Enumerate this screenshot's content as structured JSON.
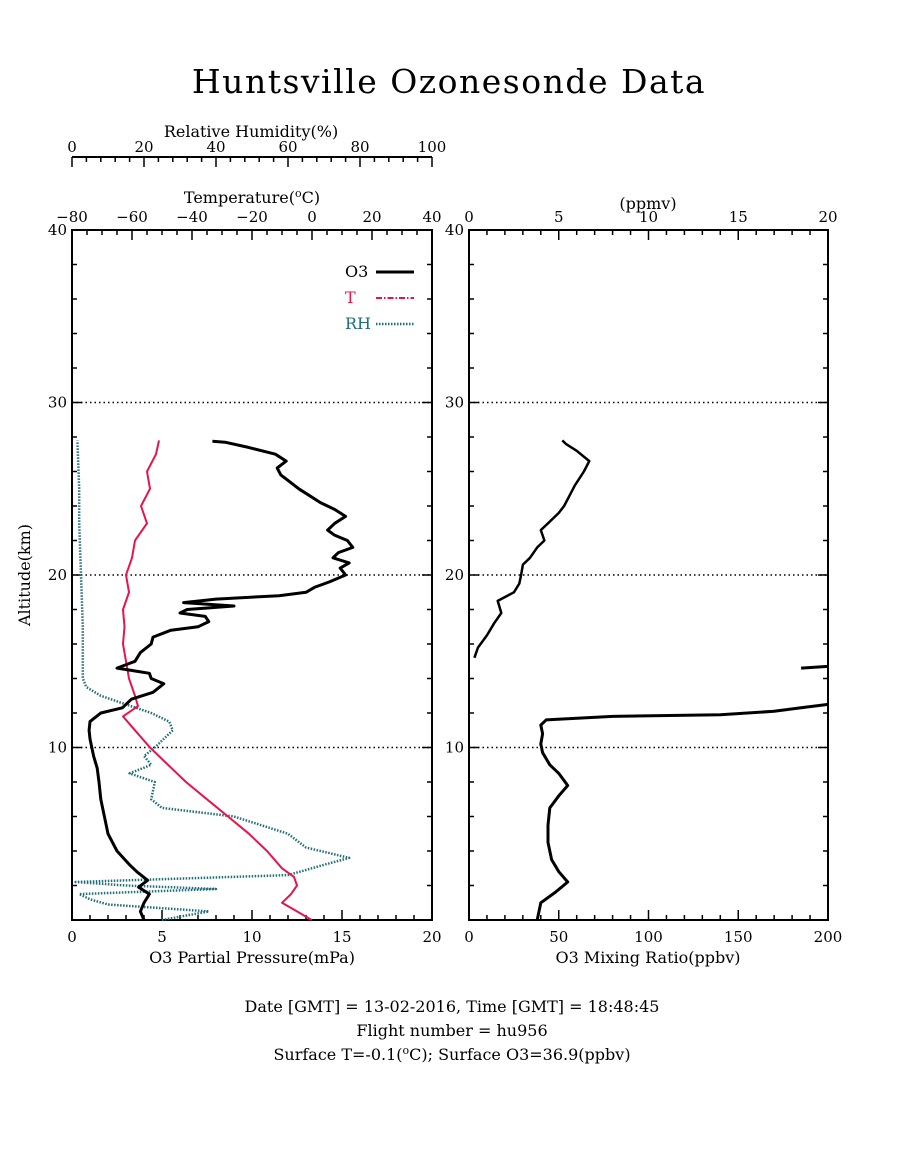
{
  "title": "Huntsville Ozonesonde Data",
  "footer": {
    "line1": "Date [GMT] = 13-02-2016,  Time [GMT] = 18:48:45",
    "line2": "Flight number = hu956",
    "line3": "Surface T=-0.1(°C); Surface O3=36.9(ppbv)"
  },
  "colors": {
    "o3": "#000000",
    "t": "#e8134b",
    "rh": "#1f6e78"
  },
  "chart_data": [
    {
      "type": "line",
      "ylabel": "Altitude(km)",
      "ylim": [
        0,
        40
      ],
      "yticks": [
        "10",
        "20",
        "30",
        "40"
      ],
      "grid_y": [
        10,
        20,
        30
      ],
      "legend": [
        "O3",
        "T",
        "RH"
      ],
      "legend_position": "top-right",
      "axes": {
        "o3": {
          "label": "O3 Partial Pressure(mPa)",
          "range": [
            0,
            20
          ],
          "ticks": [
            "0",
            "5",
            "10",
            "15",
            "20"
          ]
        },
        "temperature": {
          "label": "Temperature(°C)",
          "range": [
            -80,
            40
          ],
          "ticks": [
            "-80",
            "-60",
            "-40",
            "-20",
            "0",
            "20",
            "40"
          ]
        },
        "rh": {
          "label": "Relative Humidity(%)",
          "range": [
            0,
            100
          ],
          "ticks": [
            "0",
            "20",
            "40",
            "60",
            "80",
            "100"
          ]
        }
      },
      "series": [
        {
          "name": "O3",
          "x_units": "mPa",
          "points": [
            [
              4.0,
              0.0
            ],
            [
              3.8,
              0.5
            ],
            [
              4.0,
              1.0
            ],
            [
              4.3,
              1.5
            ],
            [
              3.7,
              1.9
            ],
            [
              4.2,
              2.3
            ],
            [
              3.6,
              2.8
            ],
            [
              3.2,
              3.2
            ],
            [
              2.5,
              4.0
            ],
            [
              2.0,
              5.0
            ],
            [
              1.8,
              6.0
            ],
            [
              1.6,
              7.0
            ],
            [
              1.5,
              8.0
            ],
            [
              1.4,
              8.8
            ],
            [
              1.2,
              9.5
            ],
            [
              1.1,
              10.0
            ],
            [
              1.0,
              10.5
            ],
            [
              0.95,
              11.0
            ],
            [
              1.0,
              11.5
            ],
            [
              1.6,
              12.0
            ],
            [
              2.8,
              12.3
            ],
            [
              3.3,
              12.8
            ],
            [
              4.5,
              13.2
            ],
            [
              5.1,
              13.7
            ],
            [
              4.4,
              14.0
            ],
            [
              4.3,
              14.3
            ],
            [
              2.5,
              14.6
            ],
            [
              3.5,
              15.0
            ],
            [
              3.8,
              15.5
            ],
            [
              4.4,
              16.0
            ],
            [
              4.5,
              16.4
            ],
            [
              5.5,
              16.8
            ],
            [
              7.0,
              17.0
            ],
            [
              7.6,
              17.3
            ],
            [
              7.4,
              17.6
            ],
            [
              6.0,
              17.8
            ],
            [
              6.4,
              18.0
            ],
            [
              9.0,
              18.2
            ],
            [
              6.2,
              18.4
            ],
            [
              8.0,
              18.6
            ],
            [
              11.5,
              18.8
            ],
            [
              13.0,
              19.0
            ],
            [
              13.5,
              19.3
            ],
            [
              14.3,
              19.6
            ],
            [
              15.2,
              20.0
            ],
            [
              14.9,
              20.4
            ],
            [
              15.4,
              20.7
            ],
            [
              14.5,
              21.0
            ],
            [
              14.8,
              21.3
            ],
            [
              15.6,
              21.6
            ],
            [
              15.3,
              22.0
            ],
            [
              14.6,
              22.3
            ],
            [
              14.2,
              22.6
            ],
            [
              14.6,
              23.0
            ],
            [
              15.2,
              23.4
            ],
            [
              14.6,
              23.8
            ],
            [
              13.8,
              24.2
            ],
            [
              13.2,
              24.6
            ],
            [
              12.6,
              25.0
            ],
            [
              12.1,
              25.4
            ],
            [
              11.6,
              25.8
            ],
            [
              11.4,
              26.2
            ],
            [
              11.9,
              26.6
            ],
            [
              11.3,
              27.0
            ],
            [
              9.8,
              27.4
            ],
            [
              8.5,
              27.7
            ],
            [
              7.8,
              27.75
            ]
          ]
        },
        {
          "name": "T",
          "x_units": "°C",
          "points": [
            [
              -0.1,
              0.0
            ],
            [
              -5.0,
              0.5
            ],
            [
              -10.0,
              1.0
            ],
            [
              -7.0,
              1.5
            ],
            [
              -5.0,
              2.0
            ],
            [
              -6.0,
              2.5
            ],
            [
              -10.0,
              3.0
            ],
            [
              -15.0,
              4.0
            ],
            [
              -21.0,
              5.0
            ],
            [
              -28.0,
              6.0
            ],
            [
              -35.0,
              7.0
            ],
            [
              -42.0,
              8.0
            ],
            [
              -48.0,
              9.0
            ],
            [
              -54.0,
              10.0
            ],
            [
              -59.0,
              11.0
            ],
            [
              -63.0,
              11.8
            ],
            [
              -58.0,
              12.4
            ],
            [
              -59.0,
              13.0
            ],
            [
              -61.0,
              14.0
            ],
            [
              -62.0,
              15.0
            ],
            [
              -63.0,
              16.0
            ],
            [
              -62.5,
              17.0
            ],
            [
              -63.0,
              18.0
            ],
            [
              -61.0,
              19.0
            ],
            [
              -62.0,
              20.0
            ],
            [
              -60.0,
              21.0
            ],
            [
              -59.0,
              22.0
            ],
            [
              -55.0,
              23.0
            ],
            [
              -57.0,
              24.0
            ],
            [
              -54.0,
              25.0
            ],
            [
              -55.0,
              26.0
            ],
            [
              -52.0,
              27.0
            ],
            [
              -51.0,
              27.8
            ]
          ]
        },
        {
          "name": "RH",
          "x_units": "%",
          "points": [
            [
              25.0,
              0.0
            ],
            [
              38.0,
              0.5
            ],
            [
              10.0,
              0.9
            ],
            [
              5.0,
              1.2
            ],
            [
              2.0,
              1.5
            ],
            [
              40.0,
              1.8
            ],
            [
              15.0,
              2.0
            ],
            [
              1.0,
              2.2
            ],
            [
              60.0,
              2.6
            ],
            [
              70.0,
              3.2
            ],
            [
              77.0,
              3.6
            ],
            [
              65.0,
              4.2
            ],
            [
              60.0,
              5.0
            ],
            [
              45.0,
              6.0
            ],
            [
              25.0,
              6.5
            ],
            [
              22.0,
              7.0
            ],
            [
              23.0,
              8.0
            ],
            [
              16.0,
              8.5
            ],
            [
              22.0,
              9.0
            ],
            [
              20.0,
              9.5
            ],
            [
              23.0,
              10.0
            ],
            [
              28.0,
              11.0
            ],
            [
              27.0,
              11.5
            ],
            [
              22.0,
              12.0
            ],
            [
              15.0,
              12.5
            ],
            [
              8.0,
              13.0
            ],
            [
              4.0,
              13.5
            ],
            [
              3.0,
              14.0
            ],
            [
              3.0,
              15.0
            ],
            [
              3.0,
              17.0
            ],
            [
              2.5,
              20.0
            ],
            [
              2.0,
              23.0
            ],
            [
              2.0,
              25.0
            ],
            [
              1.5,
              27.8
            ]
          ]
        }
      ]
    },
    {
      "type": "line",
      "ylim": [
        0,
        40
      ],
      "yticks": [
        "10",
        "20",
        "30",
        "40"
      ],
      "grid_y": [
        10,
        20,
        30
      ],
      "axes": {
        "bottom": {
          "label": "O3 Mixing Ratio(ppbv)",
          "range": [
            0,
            200
          ],
          "ticks": [
            "0",
            "50",
            "100",
            "150",
            "200"
          ]
        },
        "top": {
          "label": "(ppmv)",
          "range": [
            0,
            20
          ],
          "ticks": [
            "0",
            "5",
            "10",
            "15",
            "20"
          ]
        }
      },
      "series": [
        {
          "name": "O3 mixing ratio (ppbv)",
          "x_units": "ppbv",
          "points": [
            [
              38.0,
              0.0
            ],
            [
              40.0,
              1.0
            ],
            [
              48.0,
              1.6
            ],
            [
              55.0,
              2.2
            ],
            [
              50.0,
              2.8
            ],
            [
              46.0,
              3.5
            ],
            [
              44.0,
              4.5
            ],
            [
              44.0,
              5.5
            ],
            [
              45.0,
              6.5
            ],
            [
              50.0,
              7.2
            ],
            [
              55.0,
              7.8
            ],
            [
              50.0,
              8.5
            ],
            [
              45.0,
              9.0
            ],
            [
              41.0,
              9.7
            ],
            [
              40.0,
              10.2
            ],
            [
              41.0,
              10.8
            ],
            [
              40.0,
              11.3
            ],
            [
              43.0,
              11.6
            ],
            [
              80.0,
              11.8
            ],
            [
              140.0,
              11.9
            ],
            [
              170.0,
              12.1
            ],
            [
              185.0,
              12.3
            ],
            [
              200.0,
              12.5
            ]
          ]
        },
        {
          "name": "O3 mixing ratio (ppmv)",
          "x_units": "ppmv",
          "points": [
            [
              18.5,
              14.6
            ],
            [
              20.0,
              14.7
            ],
            [
              0.3,
              15.2
            ],
            [
              0.5,
              15.8
            ],
            [
              1.0,
              16.5
            ],
            [
              1.4,
              17.2
            ],
            [
              1.8,
              17.8
            ],
            [
              1.6,
              18.5
            ],
            [
              2.5,
              19.0
            ],
            [
              2.8,
              19.5
            ],
            [
              2.9,
              20.0
            ],
            [
              3.0,
              20.6
            ],
            [
              3.4,
              21.0
            ],
            [
              3.8,
              21.6
            ],
            [
              4.2,
              22.0
            ],
            [
              4.0,
              22.6
            ],
            [
              4.4,
              23.0
            ],
            [
              5.0,
              23.6
            ],
            [
              5.3,
              24.0
            ],
            [
              5.6,
              24.6
            ],
            [
              5.9,
              25.2
            ],
            [
              6.4,
              26.0
            ],
            [
              6.7,
              26.6
            ],
            [
              6.0,
              27.2
            ],
            [
              5.4,
              27.6
            ],
            [
              5.2,
              27.8
            ]
          ]
        }
      ]
    }
  ]
}
